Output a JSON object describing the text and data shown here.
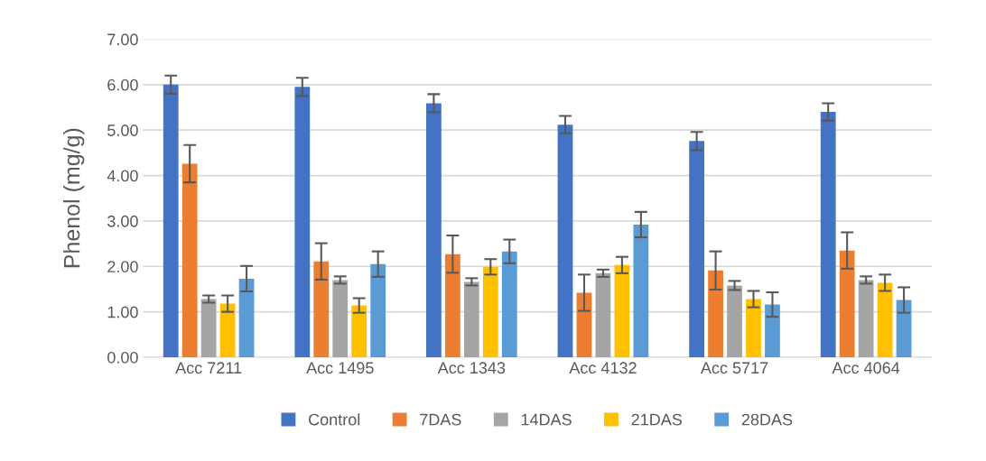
{
  "chart_data": {
    "type": "bar",
    "ylabel": "Phenol (mg/g)",
    "categories": [
      "Acc 7211",
      "Acc 1495",
      "Acc 1343",
      "Acc 4132",
      "Acc 5717",
      "Acc 4064"
    ],
    "series": [
      {
        "name": "Control",
        "color": "#4472c4",
        "values": [
          6.0,
          5.95,
          5.59,
          5.12,
          4.76,
          5.4
        ],
        "errors": [
          0.2,
          0.2,
          0.2,
          0.19,
          0.2,
          0.19
        ]
      },
      {
        "name": "7DAS",
        "color": "#ed7d31",
        "values": [
          4.26,
          2.11,
          2.27,
          1.42,
          1.91,
          2.35
        ],
        "errors": [
          0.41,
          0.4,
          0.41,
          0.4,
          0.42,
          0.4
        ]
      },
      {
        "name": "14DAS",
        "color": "#a5a5a5",
        "values": [
          1.28,
          1.7,
          1.66,
          1.85,
          1.58,
          1.7
        ],
        "errors": [
          0.08,
          0.08,
          0.08,
          0.08,
          0.1,
          0.08
        ]
      },
      {
        "name": "21DAS",
        "color": "#ffc000",
        "values": [
          1.18,
          1.14,
          1.99,
          2.03,
          1.28,
          1.64
        ],
        "errors": [
          0.18,
          0.16,
          0.17,
          0.18,
          0.18,
          0.18
        ]
      },
      {
        "name": "28DAS",
        "color": "#5b9bd5",
        "values": [
          1.73,
          2.05,
          2.33,
          2.92,
          1.16,
          1.26
        ],
        "errors": [
          0.28,
          0.28,
          0.26,
          0.28,
          0.27,
          0.28
        ]
      }
    ],
    "ylim": [
      0,
      7
    ],
    "yticks": [
      {
        "value": 0,
        "label": "0.00"
      },
      {
        "value": 1,
        "label": "1.00"
      },
      {
        "value": 2,
        "label": "2.00"
      },
      {
        "value": 3,
        "label": "3.00"
      },
      {
        "value": 4,
        "label": "4.00"
      },
      {
        "value": 5,
        "label": "5.00"
      },
      {
        "value": 6,
        "label": "6.00"
      },
      {
        "value": 7,
        "label": "7.00"
      }
    ],
    "grid": "y",
    "legend": "bottom"
  }
}
